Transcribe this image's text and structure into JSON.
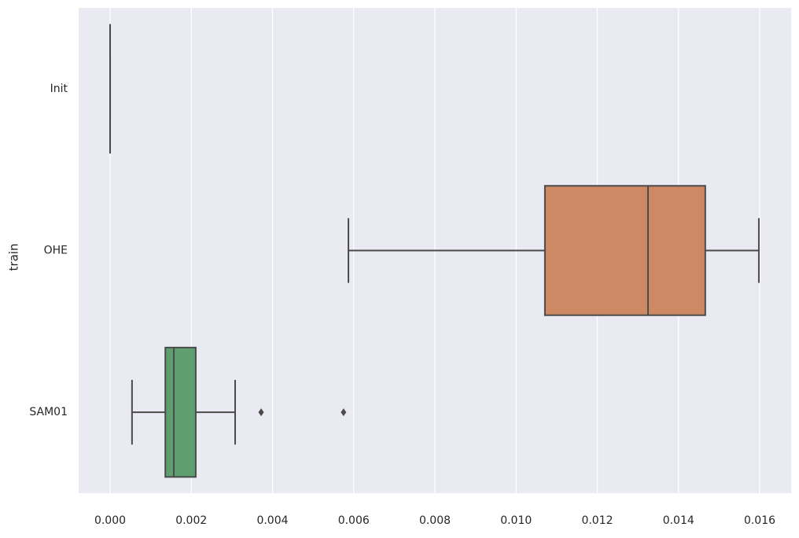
{
  "chart_data": {
    "type": "boxplot",
    "orientation": "horizontal",
    "y_label": "train",
    "categories": [
      "Init",
      "OHE",
      "SAM01"
    ],
    "colors": [
      "#5875a4",
      "#cc8963",
      "#5f9e6e"
    ],
    "boxes": [
      {
        "min": 0,
        "q1": 0,
        "median": 0,
        "q3": 0,
        "max": 0,
        "outliers": []
      },
      {
        "min": 0.00587,
        "q1": 0.01071,
        "median": 0.01325,
        "q3": 0.01466,
        "max": 0.01598,
        "outliers": []
      },
      {
        "min": 0.00054,
        "q1": 0.00136,
        "median": 0.00157,
        "q3": 0.00211,
        "max": 0.00308,
        "outliers": [
          0.00372,
          0.00575
        ]
      }
    ],
    "xlim": [
      -0.000775,
      0.016775
    ],
    "xticks": [
      {
        "value": 0,
        "label": "0.000"
      },
      {
        "value": 0.002,
        "label": "0.002"
      },
      {
        "value": 0.004,
        "label": "0.004"
      },
      {
        "value": 0.006,
        "label": "0.006"
      },
      {
        "value": 0.008,
        "label": "0.008"
      },
      {
        "value": 0.01,
        "label": "0.010"
      },
      {
        "value": 0.012,
        "label": "0.012"
      },
      {
        "value": 0.014,
        "label": "0.014"
      },
      {
        "value": 0.016,
        "label": "0.016"
      }
    ],
    "grid": true
  }
}
